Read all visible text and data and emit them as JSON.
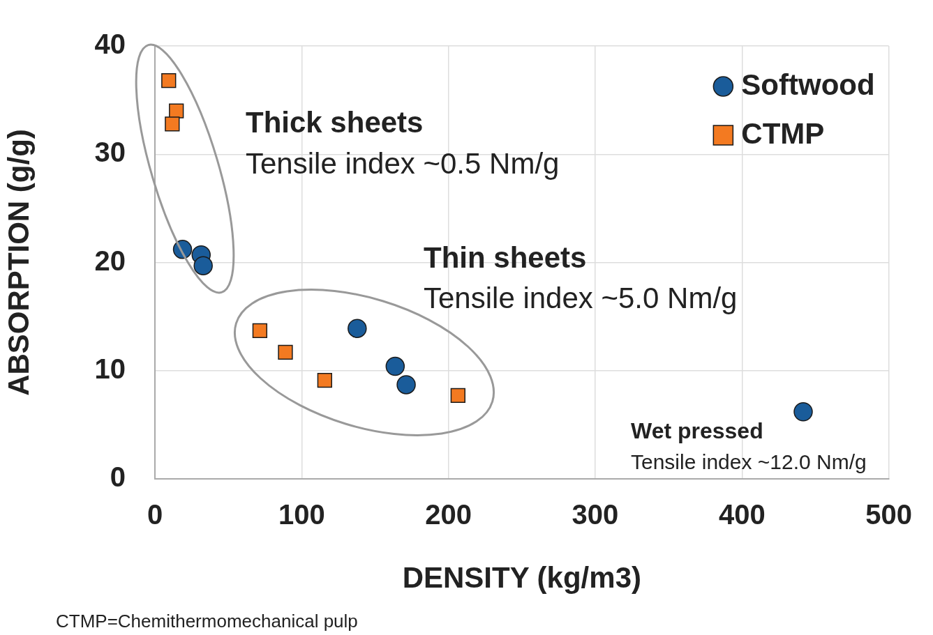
{
  "chart_data": {
    "type": "scatter",
    "xlabel": "DENSITY (kg/m3)",
    "ylabel": "ABSORPTION (g/g)",
    "xlim": [
      0,
      500
    ],
    "xticks": [
      0,
      100,
      200,
      300,
      400,
      500
    ],
    "ylim": [
      0,
      40
    ],
    "yticks": [
      0,
      10,
      20,
      30,
      40
    ],
    "grid": true,
    "legend": "top right",
    "series": [
      {
        "name": "Softwood",
        "color": "#1a5c9a",
        "marker": "circle",
        "x": [
          18.8,
          31.5,
          32.9,
          137.8,
          163.7,
          171.2,
          441.7
        ],
        "values": [
          21.2,
          20.7,
          19.7,
          13.9,
          10.4,
          8.7,
          6.2
        ]
      },
      {
        "name": "CTMP",
        "color": "#f37a21",
        "marker": "square",
        "x": [
          9.4,
          14.6,
          11.8,
          71.5,
          88.9,
          115.7,
          206.5
        ],
        "values": [
          36.8,
          34.0,
          32.8,
          13.7,
          11.7,
          9.1,
          7.7
        ]
      }
    ],
    "annotations": [
      "Thick sheets",
      "Tensile index ~0.5 Nm/g",
      "Thin sheets",
      "Tensile index ~5.0 Nm/g",
      "Wet pressed",
      "Tensile index ~12.0 Nm/g",
      "CTMP=Chemithermomechanical pulp"
    ]
  }
}
